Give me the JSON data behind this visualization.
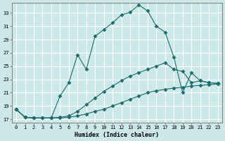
{
  "xlabel": "Humidex (Indice chaleur)",
  "bg_color": "#cce8e8",
  "grid_color": "#ffffff",
  "line_color": "#1e6b6b",
  "xlim": [
    -0.5,
    23.5
  ],
  "ylim": [
    16.5,
    34.5
  ],
  "yticks": [
    17,
    19,
    21,
    23,
    25,
    27,
    29,
    31,
    33
  ],
  "xticks": [
    0,
    1,
    2,
    3,
    4,
    5,
    6,
    7,
    8,
    9,
    10,
    11,
    12,
    13,
    14,
    15,
    16,
    17,
    18,
    19,
    20,
    21,
    22,
    23
  ],
  "curve1_x": [
    0,
    1,
    2,
    3,
    4,
    5,
    6,
    7,
    8,
    9,
    10,
    11,
    12,
    13,
    14,
    15,
    16,
    17,
    18,
    19,
    20,
    21,
    22,
    23
  ],
  "curve1_y": [
    18.5,
    17.3,
    17.2,
    17.2,
    17.2,
    17.2,
    17.3,
    17.5,
    17.8,
    18.2,
    18.5,
    19.0,
    19.5,
    20.0,
    20.5,
    21.0,
    21.3,
    21.5,
    21.7,
    21.8,
    22.0,
    22.1,
    22.2,
    22.3
  ],
  "curve2_x": [
    0,
    1,
    2,
    3,
    4,
    5,
    6,
    7,
    8,
    9,
    10,
    11,
    12,
    13,
    14,
    15,
    16,
    17,
    18,
    19,
    20,
    21,
    22,
    23
  ],
  "curve2_y": [
    18.5,
    17.3,
    17.2,
    17.2,
    17.2,
    17.3,
    17.5,
    18.2,
    19.2,
    20.2,
    21.2,
    22.0,
    22.8,
    23.5,
    24.0,
    24.5,
    25.0,
    25.5,
    24.5,
    24.2,
    22.5,
    22.8,
    22.5,
    22.4
  ],
  "curve3_x": [
    0,
    1,
    2,
    3,
    4,
    5,
    6,
    7,
    8,
    9,
    10,
    11,
    12,
    13,
    14,
    15,
    16,
    17,
    18,
    19,
    20,
    21,
    22,
    23
  ],
  "curve3_y": [
    18.5,
    17.3,
    17.2,
    17.2,
    17.2,
    20.5,
    22.5,
    26.7,
    24.5,
    29.5,
    30.5,
    31.5,
    32.7,
    33.1,
    34.2,
    33.3,
    31.0,
    30.1,
    26.3,
    21.0,
    24.0,
    22.8,
    22.5,
    22.4
  ]
}
